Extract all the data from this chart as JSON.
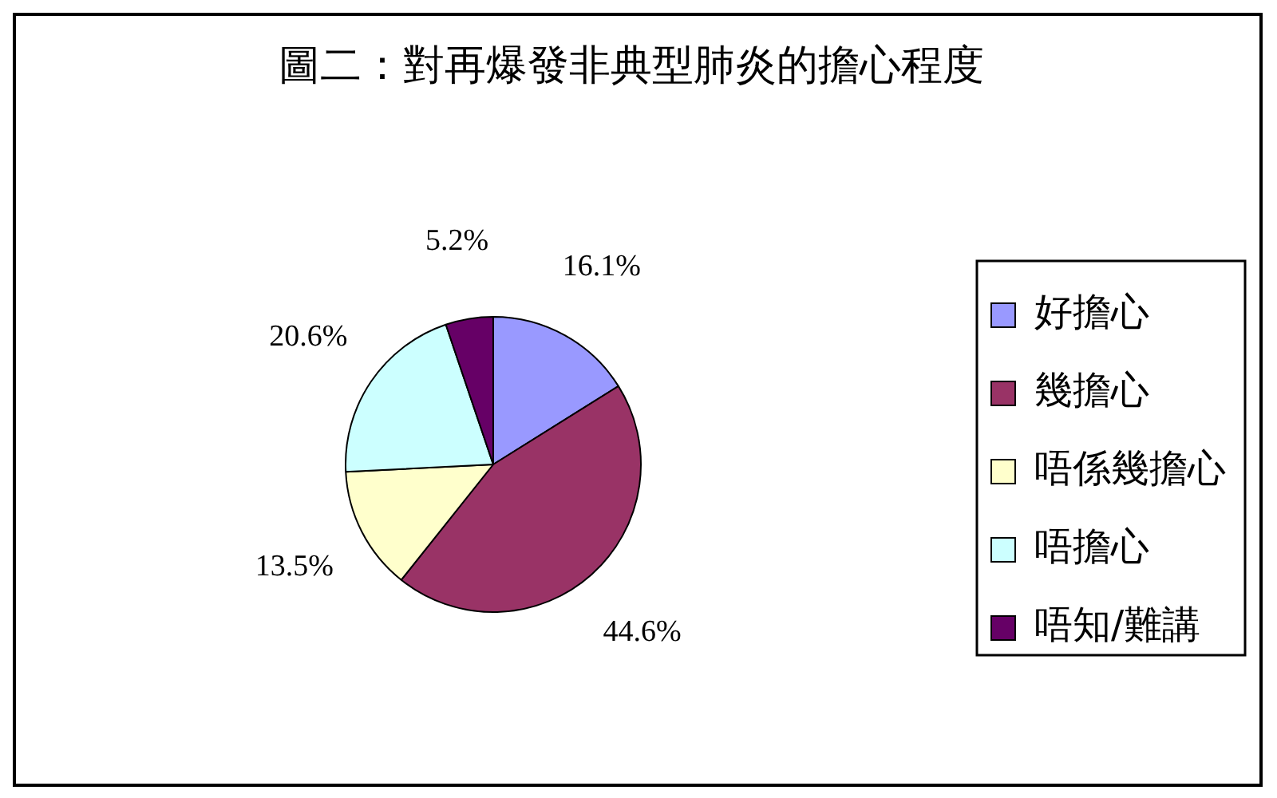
{
  "chart_data": {
    "type": "pie",
    "title": "圖二：對再爆發非典型肺炎的擔心程度",
    "categories": [
      "好擔心",
      "幾擔心",
      "唔係幾擔心",
      "唔擔心",
      "唔知/難講"
    ],
    "values": [
      16.1,
      44.6,
      13.5,
      20.6,
      5.2
    ],
    "colors": [
      "#9999ff",
      "#993366",
      "#ffffcc",
      "#ccffff",
      "#660066"
    ],
    "value_labels": [
      "16.1%",
      "44.6%",
      "13.5%",
      "20.6%",
      "5.2%"
    ],
    "legend": "right"
  }
}
